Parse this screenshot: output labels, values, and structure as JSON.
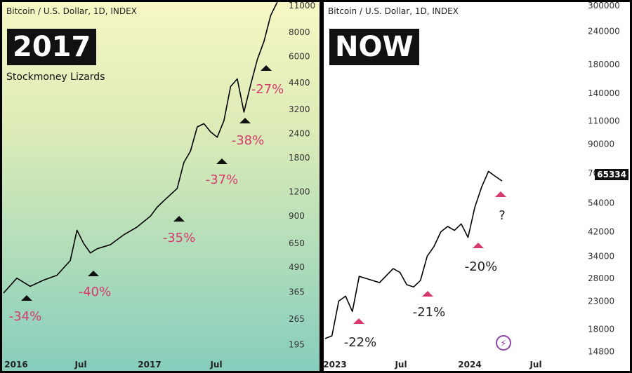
{
  "left": {
    "header": "Bitcoin / U.S. Dollar, 1D, INDEX",
    "badge": "2017",
    "subtitle": "Stockmoney Lizards"
  },
  "right": {
    "header": "Bitcoin / U.S. Dollar, 1D, INDEX",
    "badge": "NOW",
    "last_price": "65334"
  },
  "chart_data": [
    {
      "type": "line",
      "scale": "log",
      "x_ticks": [
        "2016",
        "Jul",
        "2017",
        "Jul"
      ],
      "y_ticks": [
        "11000",
        "8000",
        "6000",
        "4400",
        "3200",
        "2400",
        "1800",
        "1200",
        "900",
        "650",
        "490",
        "365",
        "265",
        "195"
      ],
      "ylim": [
        150,
        11000
      ],
      "series": [
        {
          "x": [
            2015.9,
            2016.0,
            2016.1,
            2016.2,
            2016.3,
            2016.4,
            2016.45,
            2016.5,
            2016.55,
            2016.6,
            2016.7,
            2016.8,
            2016.9,
            2017.0,
            2017.05,
            2017.1,
            2017.2,
            2017.25,
            2017.3,
            2017.35,
            2017.4,
            2017.45,
            2017.5,
            2017.55,
            2017.6,
            2017.65,
            2017.7,
            2017.75,
            2017.8,
            2017.85,
            2017.9,
            2017.95
          ],
          "y": [
            360,
            430,
            390,
            420,
            445,
            530,
            760,
            650,
            580,
            610,
            640,
            720,
            790,
            900,
            1000,
            1080,
            1250,
            1700,
            1950,
            2600,
            2700,
            2450,
            2300,
            2800,
            4200,
            4600,
            3100,
            4300,
            5800,
            7200,
            9800,
            11500
          ]
        }
      ],
      "annotations": [
        "-34%",
        "-40%",
        "-35%",
        "-37%",
        "-38%",
        "-27%"
      ]
    },
    {
      "type": "line",
      "scale": "log",
      "x_ticks": [
        "2023",
        "Jul",
        "2024",
        "Jul"
      ],
      "y_ticks": [
        "300000",
        "240000",
        "180000",
        "140000",
        "110000",
        "90000",
        "70000",
        "54000",
        "42000",
        "34000",
        "28000",
        "23000",
        "18000",
        "14800"
      ],
      "ylim": [
        13000,
        300000
      ],
      "series": [
        {
          "x": [
            2023.0,
            2023.05,
            2023.1,
            2023.15,
            2023.2,
            2023.25,
            2023.3,
            2023.4,
            2023.5,
            2023.55,
            2023.6,
            2023.65,
            2023.7,
            2023.75,
            2023.8,
            2023.85,
            2023.9,
            2023.95,
            2024.0,
            2024.05,
            2024.1,
            2024.15,
            2024.2,
            2024.25,
            2024.3
          ],
          "y": [
            16600,
            17000,
            23000,
            24000,
            21000,
            28500,
            28000,
            27000,
            30500,
            29500,
            26500,
            26000,
            27500,
            34000,
            37000,
            42000,
            44000,
            42500,
            45000,
            40000,
            52000,
            62000,
            71000,
            68000,
            65334
          ]
        }
      ],
      "annotations": [
        "-22%",
        "-21%",
        "-20%",
        "?"
      ]
    }
  ]
}
